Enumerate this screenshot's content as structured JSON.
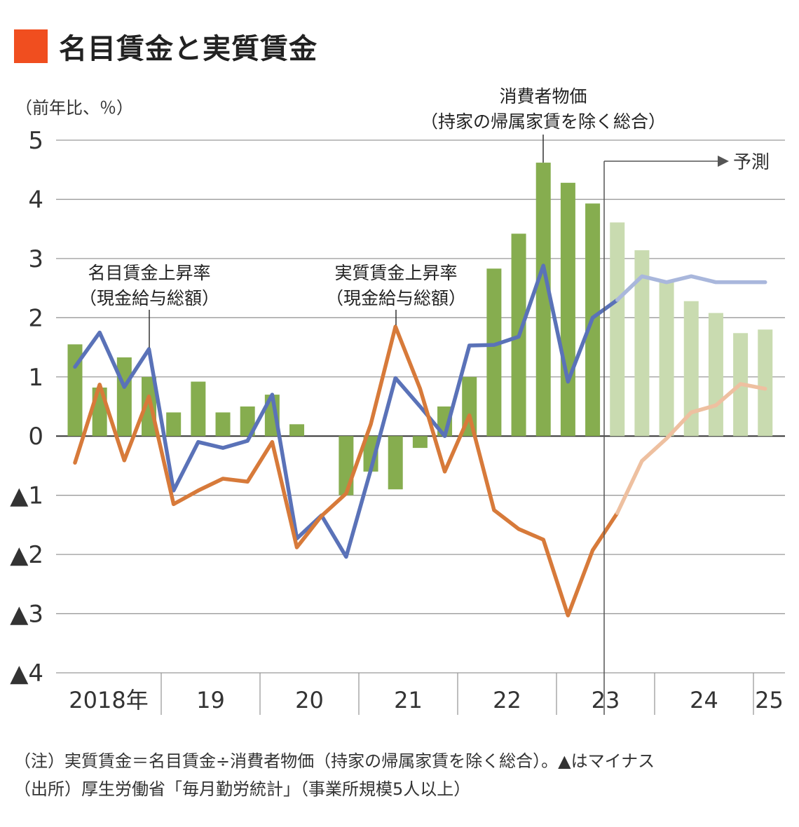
{
  "header": {
    "title": "名目賃金と実質賃金",
    "accent_color": "#f04e1f"
  },
  "chart_data": {
    "type": "bar+line",
    "unit_label": "（前年比、％）",
    "ylim": [
      -4,
      5
    ],
    "y_ticks": [
      {
        "value": 5,
        "label": "5"
      },
      {
        "value": 4,
        "label": "4"
      },
      {
        "value": 3,
        "label": "3"
      },
      {
        "value": 2,
        "label": "2"
      },
      {
        "value": 1,
        "label": "1"
      },
      {
        "value": 0,
        "label": "0"
      },
      {
        "value": -1,
        "label": "▲1"
      },
      {
        "value": -2,
        "label": "▲2"
      },
      {
        "value": -3,
        "label": "▲3"
      },
      {
        "value": -4,
        "label": "▲4"
      }
    ],
    "x_year_labels": [
      "2018年",
      "19",
      "20",
      "21",
      "22",
      "23",
      "24",
      "25"
    ],
    "x": [
      "2018Q1",
      "2018Q2",
      "2018Q3",
      "2018Q4",
      "2019Q1",
      "2019Q2",
      "2019Q3",
      "2019Q4",
      "2020Q1",
      "2020Q2",
      "2020Q3",
      "2020Q4",
      "2021Q1",
      "2021Q2",
      "2021Q3",
      "2021Q4",
      "2022Q1",
      "2022Q2",
      "2022Q3",
      "2022Q4",
      "2023Q1",
      "2023Q2",
      "2023Q3",
      "2023Q4",
      "2024Q1",
      "2024Q2",
      "2024Q3",
      "2024Q4",
      "2025Q1"
    ],
    "forecast_start_index": 22,
    "forecast_label": "予測",
    "series": [
      {
        "name": "消費者物価（持家の帰属家賃を除く総合）",
        "label_lines": [
          "消費者物価",
          "（持家の帰属家賃を除く総合）"
        ],
        "kind": "bar",
        "color": "#86ad4f",
        "forecast_color": "#c9dbb0",
        "values": [
          1.55,
          0.82,
          1.33,
          1.0,
          0.4,
          0.92,
          0.4,
          0.5,
          0.7,
          0.2,
          0.0,
          -1.0,
          -0.6,
          -0.9,
          -0.2,
          0.5,
          1.0,
          2.83,
          3.42,
          4.62,
          4.28,
          3.93,
          3.61,
          3.14,
          2.63,
          2.28,
          2.08,
          1.74,
          1.8
        ]
      },
      {
        "name": "名目賃金上昇率（現金給与総額）",
        "label_lines": [
          "名目賃金上昇率",
          "（現金給与総額）"
        ],
        "kind": "line",
        "color": "#5a72b8",
        "forecast_color": "#a9b7dc",
        "values": [
          1.17,
          1.75,
          0.83,
          1.47,
          -0.92,
          -0.1,
          -0.2,
          -0.08,
          0.7,
          -1.73,
          -1.34,
          -2.04,
          -0.57,
          0.98,
          0.5,
          0.0,
          1.53,
          1.54,
          1.68,
          2.88,
          0.92,
          2.0,
          2.3,
          2.7,
          2.6,
          2.7,
          2.6,
          2.6,
          2.6
        ]
      },
      {
        "name": "実質賃金上昇率（現金給与総額）",
        "label_lines": [
          "実質賃金上昇率",
          "（現金給与総額）"
        ],
        "kind": "line",
        "color": "#d77a3a",
        "forecast_color": "#eec0a0",
        "values": [
          -0.45,
          0.87,
          -0.41,
          0.67,
          -1.15,
          -0.92,
          -0.72,
          -0.77,
          -0.1,
          -1.88,
          -1.35,
          -0.97,
          0.2,
          1.85,
          0.8,
          -0.6,
          0.35,
          -1.25,
          -1.57,
          -1.75,
          -3.03,
          -1.93,
          -1.3,
          -0.42,
          -0.04,
          0.4,
          0.52,
          0.88,
          0.8
        ]
      }
    ],
    "grid": true
  },
  "footnotes": {
    "note": "（注）実質賃金＝名目賃金÷消費者物価（持家の帰属家賃を除く総合）。▲はマイナス",
    "source": "（出所）厚生労働省「毎月勤労統計」（事業所規模5人以上）"
  }
}
